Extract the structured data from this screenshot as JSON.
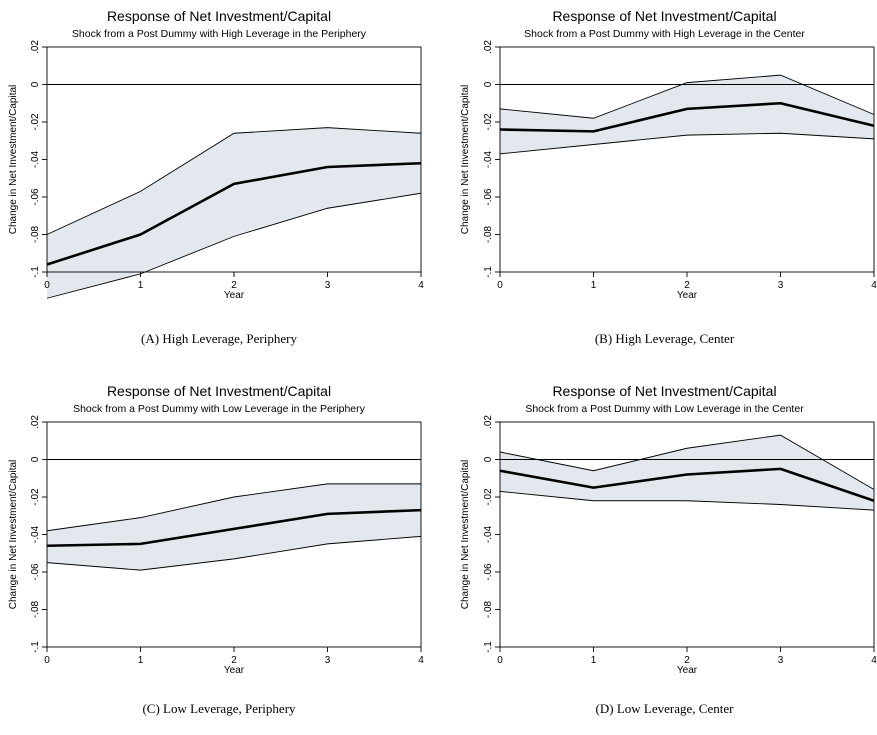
{
  "figure": {
    "panels": [
      {
        "caption": "(A) High Leverage, Periphery"
      },
      {
        "caption": "(B) High Leverage, Center"
      },
      {
        "caption": "(C) Low Leverage, Periphery"
      },
      {
        "caption": "(D) Low Leverage, Center"
      }
    ]
  },
  "chart_data": [
    {
      "type": "line",
      "title": "Response of Net Investment/Capital",
      "subtitle": "Shock from a Post Dummy with High Leverage in the Periphery",
      "xlabel": "Year",
      "ylabel": "Change in Net Investment/Capital",
      "x": [
        0,
        1,
        2,
        3,
        4
      ],
      "xticks": [
        "0",
        "1",
        "2",
        "3",
        "4"
      ],
      "xlim": [
        0,
        4
      ],
      "ylim": [
        -0.1,
        0.02
      ],
      "yticks": [
        -0.1,
        -0.08,
        -0.06,
        -0.04,
        -0.02,
        0,
        0.02
      ],
      "ytick_labels": [
        "-.1",
        "-.08",
        "-.06",
        "-.04",
        "-.02",
        "0",
        ".02"
      ],
      "reference_line": 0,
      "grid": false,
      "series": [
        {
          "values": [
            -0.096,
            -0.08,
            -0.053,
            -0.044,
            -0.042
          ]
        },
        {
          "values": [
            -0.114,
            -0.101,
            -0.081,
            -0.066,
            -0.058
          ]
        },
        {
          "values": [
            -0.08,
            -0.057,
            -0.026,
            -0.023,
            -0.026
          ]
        }
      ]
    },
    {
      "type": "line",
      "title": "Response of Net Investment/Capital",
      "subtitle": "Shock from a Post Dummy with High Leverage in the Center",
      "xlabel": "Year",
      "ylabel": "Change in Net Investment/Capital",
      "x": [
        0,
        1,
        2,
        3,
        4
      ],
      "xticks": [
        "0",
        "1",
        "2",
        "3",
        "4"
      ],
      "xlim": [
        0,
        4
      ],
      "ylim": [
        -0.1,
        0.02
      ],
      "yticks": [
        -0.1,
        -0.08,
        -0.06,
        -0.04,
        -0.02,
        0,
        0.02
      ],
      "ytick_labels": [
        "-.1",
        "-.08",
        "-.06",
        "-.04",
        "-.02",
        "0",
        ".02"
      ],
      "reference_line": 0,
      "grid": false,
      "series": [
        {
          "values": [
            -0.024,
            -0.025,
            -0.013,
            -0.01,
            -0.022
          ]
        },
        {
          "values": [
            -0.037,
            -0.032,
            -0.027,
            -0.026,
            -0.029
          ]
        },
        {
          "values": [
            -0.013,
            -0.018,
            0.001,
            0.005,
            -0.016
          ]
        }
      ]
    },
    {
      "type": "line",
      "title": "Response of Net Investment/Capital",
      "subtitle": "Shock from a Post Dummy with Low Leverage in the Periphery",
      "xlabel": "Year",
      "ylabel": "Change in Net Investment/Capital",
      "x": [
        0,
        1,
        2,
        3,
        4
      ],
      "xticks": [
        "0",
        "1",
        "2",
        "3",
        "4"
      ],
      "xlim": [
        0,
        4
      ],
      "ylim": [
        -0.1,
        0.02
      ],
      "yticks": [
        -0.1,
        -0.08,
        -0.06,
        -0.04,
        -0.02,
        0,
        0.02
      ],
      "ytick_labels": [
        "-.1",
        "-.08",
        "-.06",
        "-.04",
        "-.02",
        "0",
        ".02"
      ],
      "reference_line": 0,
      "grid": false,
      "series": [
        {
          "values": [
            -0.046,
            -0.045,
            -0.037,
            -0.029,
            -0.027
          ]
        },
        {
          "values": [
            -0.055,
            -0.059,
            -0.053,
            -0.045,
            -0.041
          ]
        },
        {
          "values": [
            -0.038,
            -0.031,
            -0.02,
            -0.013,
            -0.013
          ]
        }
      ]
    },
    {
      "type": "line",
      "title": "Response of Net Investment/Capital",
      "subtitle": "Shock from a Post Dummy with Low Leverage in the Center",
      "xlabel": "Year",
      "ylabel": "Change in Net Investment/Capital",
      "x": [
        0,
        1,
        2,
        3,
        4
      ],
      "xticks": [
        "0",
        "1",
        "2",
        "3",
        "4"
      ],
      "xlim": [
        0,
        4
      ],
      "ylim": [
        -0.1,
        0.02
      ],
      "yticks": [
        -0.1,
        -0.08,
        -0.06,
        -0.04,
        -0.02,
        0,
        0.02
      ],
      "ytick_labels": [
        "-.1",
        "-.08",
        "-.06",
        "-.04",
        "-.02",
        "0",
        ".02"
      ],
      "reference_line": 0,
      "grid": false,
      "series": [
        {
          "values": [
            -0.006,
            -0.015,
            -0.008,
            -0.005,
            -0.022
          ]
        },
        {
          "values": [
            -0.017,
            -0.022,
            -0.022,
            -0.024,
            -0.027
          ]
        },
        {
          "values": [
            0.004,
            -0.006,
            0.006,
            0.013,
            -0.016
          ]
        }
      ]
    }
  ],
  "colors": {
    "band_fill": "#e2e8ee",
    "line": "#000000"
  }
}
